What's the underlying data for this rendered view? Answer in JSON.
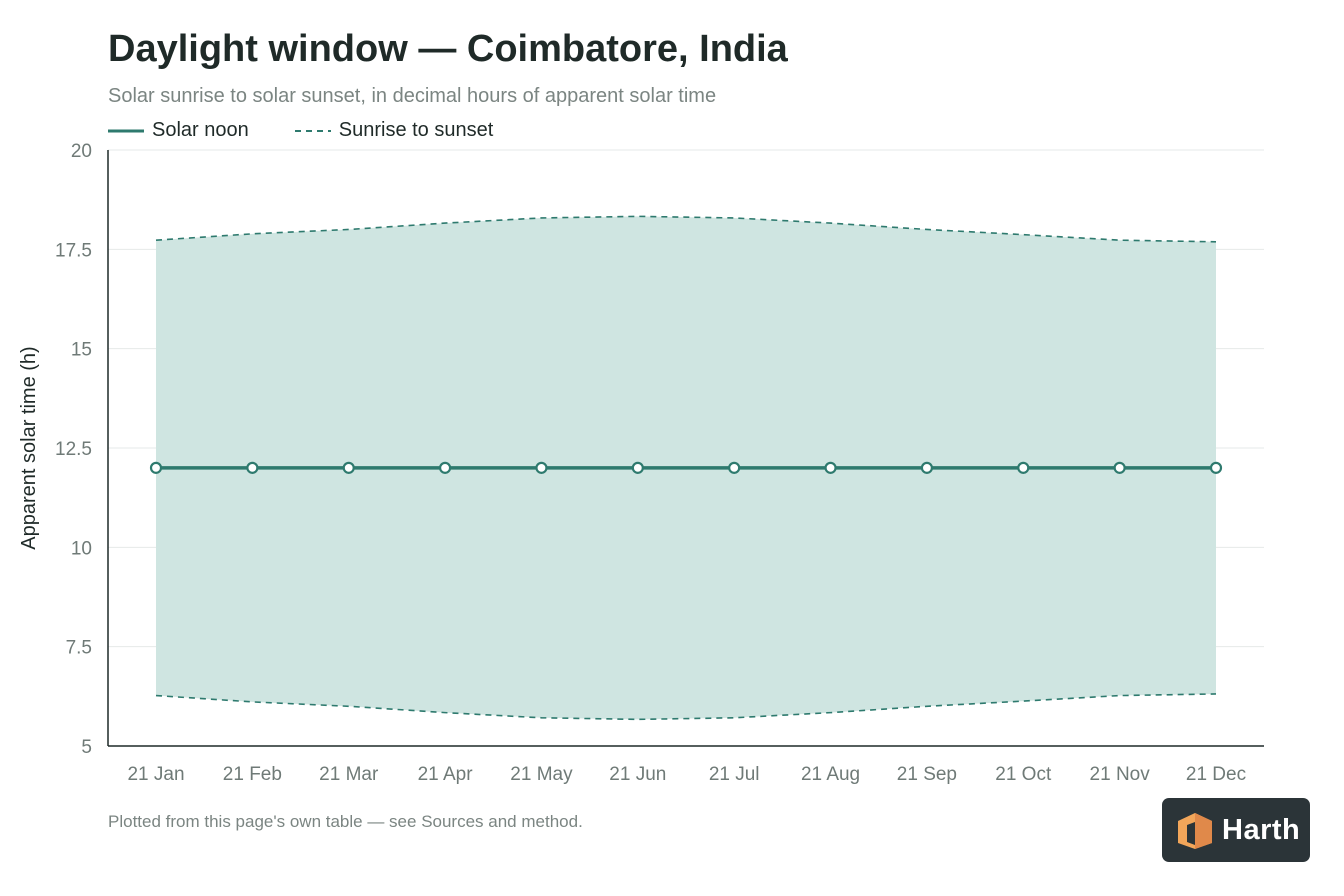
{
  "chart_data": {
    "type": "line",
    "title": "Daylight window — Coimbatore, India",
    "subtitle": "Solar sunrise to solar sunset, in decimal hours of apparent solar time",
    "xlabel": "",
    "ylabel": "Apparent solar time (h)",
    "ylim": [
      5,
      20
    ],
    "yticks": [
      "5",
      "7.5",
      "10",
      "12.5",
      "15",
      "17.5",
      "20"
    ],
    "grid": true,
    "legend_position": "top-left",
    "categories": [
      "21 Jan",
      "21 Feb",
      "21 Mar",
      "21 Apr",
      "21 May",
      "21 Jun",
      "21 Jul",
      "21 Aug",
      "21 Sep",
      "21 Oct",
      "21 Nov",
      "21 Dec"
    ],
    "series": [
      {
        "name": "Solar noon",
        "style": "solid",
        "values": [
          12,
          12,
          12,
          12,
          12,
          12,
          12,
          12,
          12,
          12,
          12,
          12
        ]
      },
      {
        "name": "Sunrise to sunset",
        "style": "dashed-band",
        "sunrise": [
          6.27,
          6.11,
          6.0,
          5.84,
          5.71,
          5.67,
          5.71,
          5.84,
          6.0,
          6.13,
          6.27,
          6.31
        ],
        "sunset": [
          17.73,
          17.89,
          18.0,
          18.16,
          18.29,
          18.33,
          18.29,
          18.16,
          18.0,
          17.87,
          17.73,
          17.69
        ]
      }
    ]
  },
  "footnote": "Plotted from this page's own table — see Sources and method.",
  "logo": {
    "text": "Harth",
    "mark_color": "#f2a65a"
  },
  "colors": {
    "line": "#2e7a6e",
    "band": "#cfe5e1",
    "grid": "#e6e9e8",
    "axis": "#1f2a28"
  }
}
